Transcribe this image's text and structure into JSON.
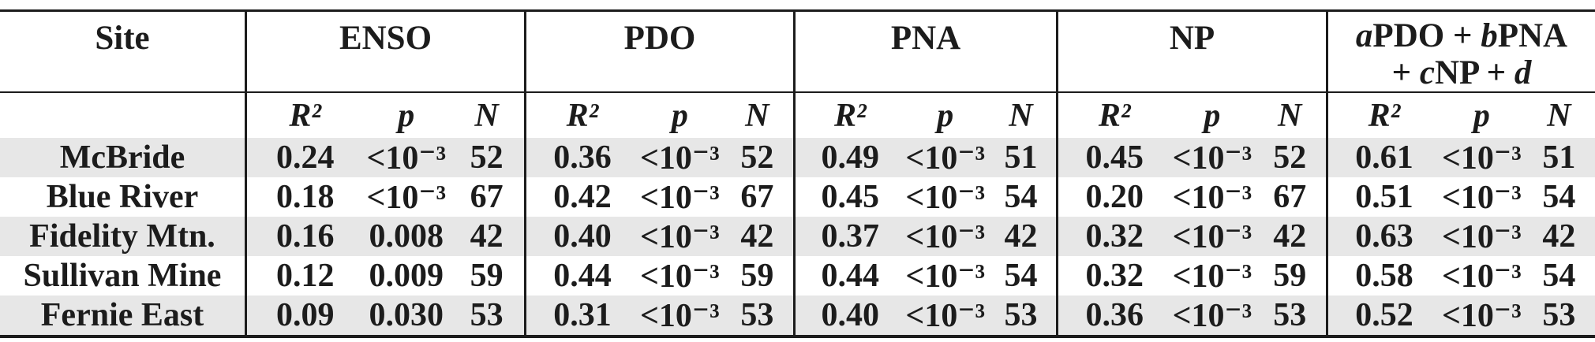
{
  "chart_data": {
    "type": "table",
    "site_header": "Site",
    "groups": [
      {
        "label": "ENSO"
      },
      {
        "label": "PDO"
      },
      {
        "label": "PNA"
      },
      {
        "label": "NP"
      }
    ],
    "model_header": {
      "full": "aPDO + bPNA + cNP + d",
      "a": "a",
      "pdo_term": "PDO + ",
      "b": "b",
      "pna_term": "PNA",
      "plus": "+ ",
      "c": "c",
      "np_term": "NP + ",
      "d": "d"
    },
    "subheaders": {
      "r2": "R²",
      "p": "p",
      "n": "N"
    },
    "rows": [
      {
        "site": "McBride",
        "enso": {
          "r2": "0.24",
          "p": "<10⁻³",
          "n": "52"
        },
        "pdo": {
          "r2": "0.36",
          "p": "<10⁻³",
          "n": "52"
        },
        "pna": {
          "r2": "0.49",
          "p": "<10⁻³",
          "n": "51"
        },
        "np": {
          "r2": "0.45",
          "p": "<10⁻³",
          "n": "52"
        },
        "model": {
          "r2": "0.61",
          "p": "<10⁻³",
          "n": "51"
        }
      },
      {
        "site": "Blue River",
        "enso": {
          "r2": "0.18",
          "p": "<10⁻³",
          "n": "67"
        },
        "pdo": {
          "r2": "0.42",
          "p": "<10⁻³",
          "n": "67"
        },
        "pna": {
          "r2": "0.45",
          "p": "<10⁻³",
          "n": "54"
        },
        "np": {
          "r2": "0.20",
          "p": "<10⁻³",
          "n": "67"
        },
        "model": {
          "r2": "0.51",
          "p": "<10⁻³",
          "n": "54"
        }
      },
      {
        "site": "Fidelity Mtn.",
        "enso": {
          "r2": "0.16",
          "p": "0.008",
          "n": "42"
        },
        "pdo": {
          "r2": "0.40",
          "p": "<10⁻³",
          "n": "42"
        },
        "pna": {
          "r2": "0.37",
          "p": "<10⁻³",
          "n": "42"
        },
        "np": {
          "r2": "0.32",
          "p": "<10⁻³",
          "n": "42"
        },
        "model": {
          "r2": "0.63",
          "p": "<10⁻³",
          "n": "42"
        }
      },
      {
        "site": "Sullivan Mine",
        "enso": {
          "r2": "0.12",
          "p": "0.009",
          "n": "59"
        },
        "pdo": {
          "r2": "0.44",
          "p": "<10⁻³",
          "n": "59"
        },
        "pna": {
          "r2": "0.44",
          "p": "<10⁻³",
          "n": "54"
        },
        "np": {
          "r2": "0.32",
          "p": "<10⁻³",
          "n": "59"
        },
        "model": {
          "r2": "0.58",
          "p": "<10⁻³",
          "n": "54"
        }
      },
      {
        "site": "Fernie East",
        "enso": {
          "r2": "0.09",
          "p": "0.030",
          "n": "53"
        },
        "pdo": {
          "r2": "0.31",
          "p": "<10⁻³",
          "n": "53"
        },
        "pna": {
          "r2": "0.40",
          "p": "<10⁻³",
          "n": "53"
        },
        "np": {
          "r2": "0.36",
          "p": "<10⁻³",
          "n": "53"
        },
        "model": {
          "r2": "0.52",
          "p": "<10⁻³",
          "n": "53"
        }
      }
    ]
  },
  "colors": {
    "background": "#ffffff",
    "stripe": "#e7e7e7",
    "text": "#1c1c1c",
    "border": "#1c1c1c"
  }
}
